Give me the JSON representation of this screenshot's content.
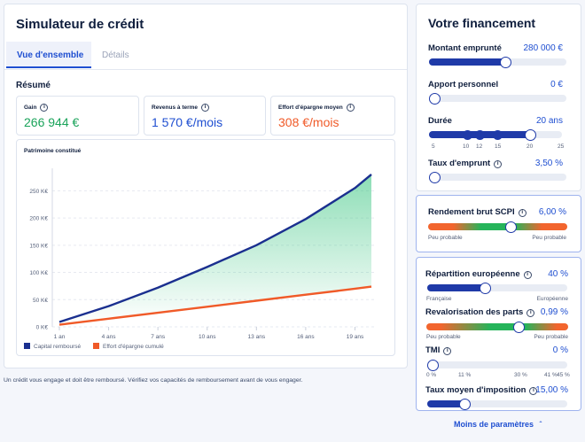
{
  "left": {
    "title": "Simulateur de crédit",
    "tabs": [
      {
        "label": "Vue d'ensemble",
        "active": true
      },
      {
        "label": "Détails",
        "active": false
      }
    ],
    "section_title": "Résumé",
    "stats": [
      {
        "label": "Gain",
        "value": "266 944 €",
        "color": "#1aa35a"
      },
      {
        "label": "Revenus à terme",
        "value": "1 570 €/mois",
        "color": "#1f4fd1"
      },
      {
        "label": "Effort d'épargne moyen",
        "value": "308 €/mois",
        "color": "#f05a28"
      }
    ],
    "disclaimer": "Un crédit vous engage et doit être remboursé. Vérifiez vos capacités de remboursement avant de vous engager."
  },
  "chart_data": {
    "type": "area",
    "title": "Patrimoine constitué",
    "x": [
      "1 an",
      "4 ans",
      "7 ans",
      "10 ans",
      "13 ans",
      "16 ans",
      "19 ans"
    ],
    "y_ticks": [
      "0 K€",
      "50 K€",
      "100 K€",
      "150 K€",
      "200 K€",
      "250 K€"
    ],
    "ylim": [
      0,
      275
    ],
    "series": [
      {
        "name": "Capital remboursé",
        "color": "#1a2f8f",
        "x": [
          1,
          4,
          7,
          10,
          13,
          16,
          19,
          20
        ],
        "values": [
          9,
          38,
          72,
          110,
          150,
          198,
          255,
          280
        ]
      },
      {
        "name": "Effort d'épargne cumulé",
        "color": "#f05a28",
        "x": [
          1,
          4,
          7,
          10,
          13,
          16,
          19,
          20
        ],
        "values": [
          4,
          15,
          26,
          37,
          48,
          59,
          70,
          74
        ]
      }
    ],
    "legend": "bottom-left"
  },
  "right": {
    "title": "Votre financement",
    "montant": {
      "label": "Montant emprunté",
      "value": "280 000 €",
      "level": 0.56
    },
    "apport": {
      "label": "Apport personnel",
      "value": "0 €",
      "level": 0.0
    },
    "duree": {
      "label": "Durée",
      "value": "20 ans",
      "level": 0.75,
      "ticks": [
        "5",
        "10",
        "12",
        "15",
        "20",
        "25"
      ]
    },
    "taux": {
      "label": "Taux d'emprunt",
      "value": "3,50 %",
      "level": 0.0
    },
    "rendement": {
      "label": "Rendement brut SCPI",
      "value": "6,00 %",
      "level": 0.6,
      "low": "Peu probable",
      "high": "Peu probable"
    },
    "repartition": {
      "label": "Répartition européenne",
      "value": "40 %",
      "level": 0.4,
      "low": "Française",
      "high": "Européenne"
    },
    "revalorisation": {
      "label": "Revalorisation des parts",
      "value": "0,99 %",
      "level": 0.67,
      "low": "Peu probable",
      "high": "Peu probable"
    },
    "tmi": {
      "label": "TMI",
      "value": "0 %",
      "level": 0.0,
      "ticks": [
        "0 %",
        "11 %",
        "30 %",
        "41 %",
        "45 %"
      ]
    },
    "taux_imposition": {
      "label": "Taux moyen d'imposition",
      "value": "15,00 %",
      "level": 0.25
    },
    "toggle": "Moins de paramètres"
  }
}
